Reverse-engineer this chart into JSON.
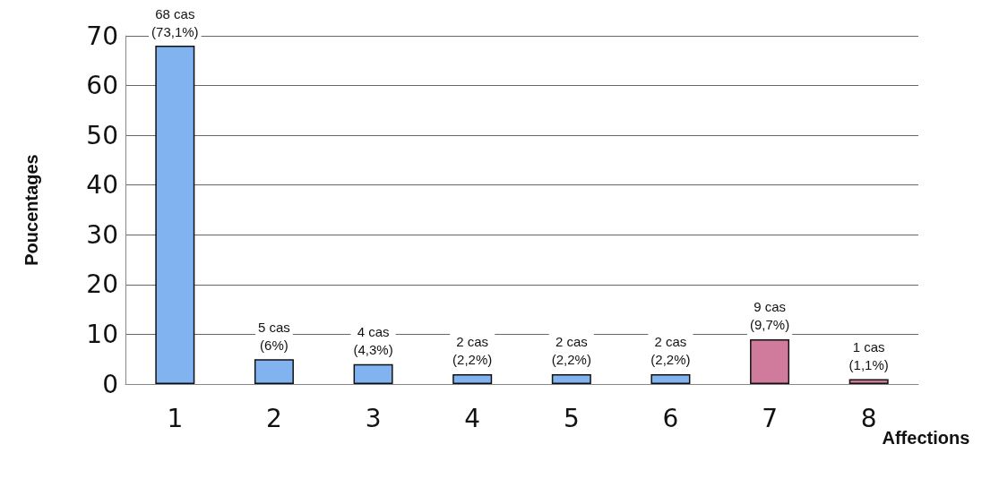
{
  "chart_data": {
    "type": "bar",
    "xlabel": "Affections",
    "ylabel": "Poucentages",
    "categories": [
      "1",
      "2",
      "3",
      "4",
      "5",
      "6",
      "7",
      "8"
    ],
    "values": [
      68,
      5,
      4,
      2,
      2,
      2,
      9,
      1
    ],
    "colors": [
      "#80b3f0",
      "#80b3f0",
      "#80b3f0",
      "#80b3f0",
      "#80b3f0",
      "#80b3f0",
      "#d07a9c",
      "#d07a9c"
    ],
    "value_labels": [
      "68 cas\n(73,1%)",
      "5 cas\n(6%)",
      "4 cas\n(4,3%)",
      "2 cas\n(2,2%)",
      "2 cas\n(2,2%)",
      "2 cas\n(2,2%)",
      "9 cas\n(9,7%)",
      "1 cas\n(1,1%)"
    ],
    "ylim": [
      0,
      70
    ],
    "yticks": [
      0,
      10,
      20,
      30,
      40,
      50,
      60,
      70
    ],
    "grid": "y"
  }
}
